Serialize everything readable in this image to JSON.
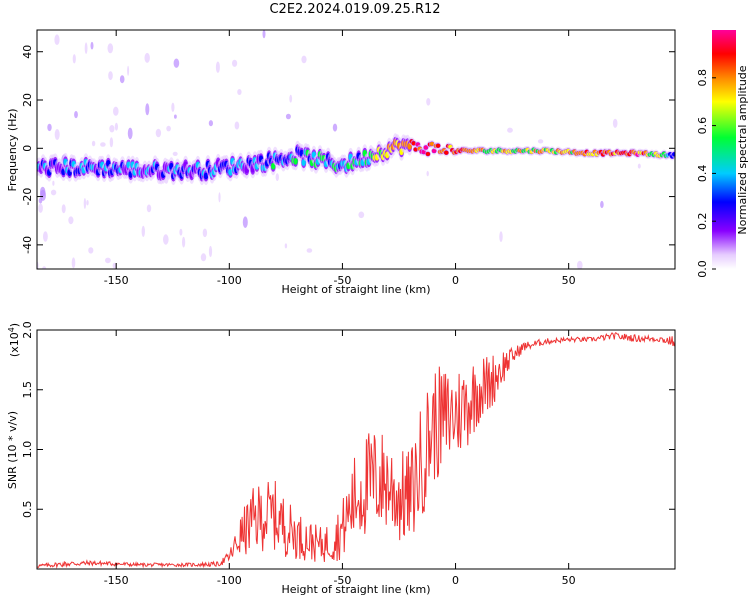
{
  "title": "C2E2.2024.019.09.25.R12",
  "chart_data": [
    {
      "type": "heatmap",
      "xlabel": "Height of straight line (km)",
      "ylabel": "Frequency (Hz)",
      "xlim": [
        -185,
        97
      ],
      "ylim": [
        -50,
        49
      ],
      "xticks": [
        -150,
        -100,
        -50,
        0,
        50
      ],
      "yticks": [
        -40,
        -20,
        0,
        20,
        40
      ],
      "colorbar": {
        "label": "Normalized spectral amplitude",
        "range": [
          0.0,
          1.0
        ],
        "ticks": [
          0.0,
          0.2,
          0.4,
          0.6,
          0.8
        ],
        "colors": [
          "#ffffff",
          "#e6ccff",
          "#8800ff",
          "#0000ff",
          "#00ccff",
          "#00ff33",
          "#ffff00",
          "#ff8800",
          "#ff0000",
          "#ff0099"
        ]
      },
      "ridge": {
        "x": [
          -185,
          -170,
          -155,
          -140,
          -125,
          -110,
          -95,
          -80,
          -70,
          -60,
          -50,
          -40,
          -32,
          -25,
          -20,
          -15,
          -10,
          0,
          20,
          40,
          60,
          80,
          97
        ],
        "y": [
          -8,
          -8,
          -8,
          -9,
          -9,
          -9,
          -7,
          -5,
          -3,
          -5,
          -7,
          -4,
          -1,
          1,
          1,
          0,
          0,
          -1,
          -1,
          -1,
          -2,
          -2,
          -3
        ]
      },
      "ridge_amplitude": {
        "x": [
          -185,
          -100,
          -60,
          -40,
          -25,
          -15,
          0,
          20,
          60,
          80,
          97
        ],
        "v": [
          0.35,
          0.35,
          0.45,
          0.5,
          0.7,
          0.9,
          0.8,
          0.6,
          0.75,
          0.85,
          0.4
        ]
      }
    },
    {
      "type": "line",
      "xlabel": "Height of straight line (km)",
      "ylabel": "SNR (10 * v/v)",
      "yscale_label": "(x10",
      "yscale_exp": "4",
      "yscale_close": ")",
      "xlim": [
        -185,
        97
      ],
      "ylim": [
        0.0,
        2.0
      ],
      "xticks": [
        -150,
        -100,
        -50,
        0,
        50
      ],
      "yticks": [
        0.5,
        1.0,
        1.5,
        2.0
      ],
      "ytick_labels": [
        "0.5",
        "1.0",
        "1.5",
        "2.0"
      ],
      "color": "#ee3333",
      "envelope": {
        "x": [
          -185,
          -170,
          -160,
          -140,
          -120,
          -105,
          -100,
          -95,
          -90,
          -85,
          -80,
          -75,
          -70,
          -60,
          -55,
          -50,
          -45,
          -40,
          -35,
          -30,
          -25,
          -20,
          -15,
          -10,
          -5,
          0,
          5,
          10,
          15,
          20,
          25,
          30,
          40,
          50,
          60,
          70,
          80,
          90,
          97
        ],
        "base": [
          0.01,
          0.02,
          0.03,
          0.02,
          0.02,
          0.02,
          0.05,
          0.1,
          0.12,
          0.15,
          0.15,
          0.1,
          0.08,
          0.05,
          0.05,
          0.08,
          0.2,
          0.25,
          0.3,
          0.3,
          0.2,
          0.2,
          0.4,
          0.7,
          0.8,
          0.9,
          1.0,
          1.2,
          1.3,
          1.5,
          1.7,
          1.82,
          1.88,
          1.9,
          1.9,
          1.92,
          1.9,
          1.9,
          1.85
        ],
        "amp": [
          0.03,
          0.05,
          0.04,
          0.03,
          0.03,
          0.04,
          0.1,
          0.35,
          0.55,
          0.6,
          0.6,
          0.5,
          0.4,
          0.3,
          0.35,
          0.5,
          0.75,
          0.9,
          0.9,
          0.85,
          0.8,
          0.8,
          1.0,
          1.0,
          0.9,
          0.8,
          0.75,
          0.6,
          0.5,
          0.35,
          0.15,
          0.08,
          0.05,
          0.04,
          0.04,
          0.06,
          0.06,
          0.05,
          0.1
        ]
      }
    }
  ]
}
